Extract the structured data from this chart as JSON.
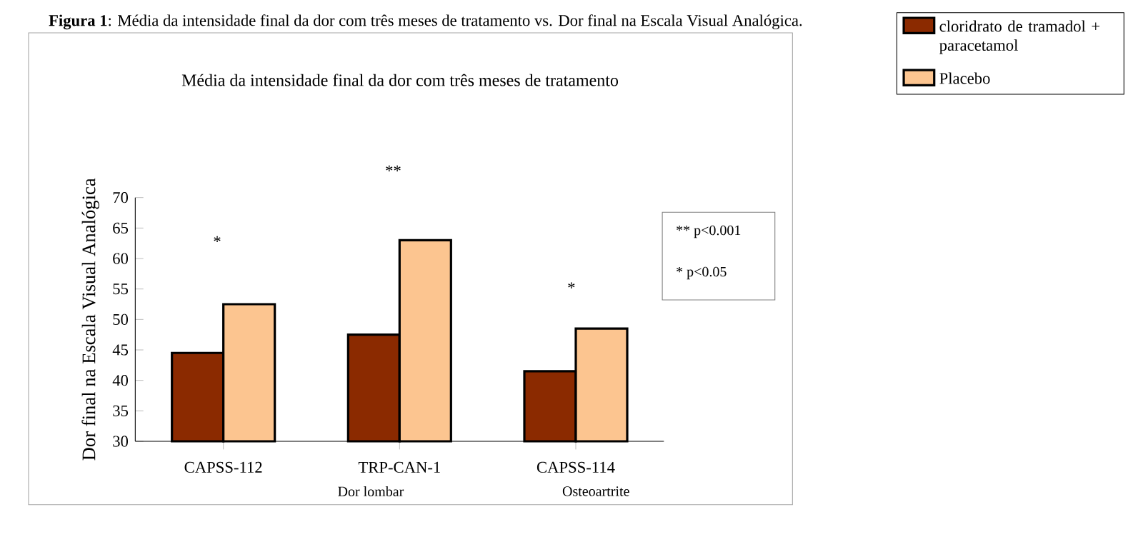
{
  "chart_data": {
    "type": "bar",
    "title": "**Figura 1**: Média da intensidade final da dor com três meses de tratamento vs. Dor final na Escala Visual Analógica.",
    "subtitle": "Média da intensidade final da dor com três meses de tratamento",
    "ylabel": "Dor final na Escala Visual Analógica",
    "categories": [
      "CAPSS-112",
      "TRP-CAN-1",
      "CAPSS-114"
    ],
    "series": [
      {
        "name": "cloridrato de tramadol + paracetamol",
        "color": "#8b2a00",
        "values": [
          44.5,
          47.5,
          41.5
        ]
      },
      {
        "name": "Placebo",
        "color": "#fcc590",
        "values": [
          52.5,
          63,
          48.5
        ]
      }
    ],
    "ylim": [
      30,
      70
    ],
    "yticks": [
      30,
      35,
      40,
      45,
      50,
      55,
      60,
      65,
      70
    ],
    "legend": "top right",
    "annotations": [
      "*",
      "**",
      "*",
      "** p<0.001",
      "* p<0.05",
      "Dor lombar",
      "Osteoartrite"
    ]
  }
}
